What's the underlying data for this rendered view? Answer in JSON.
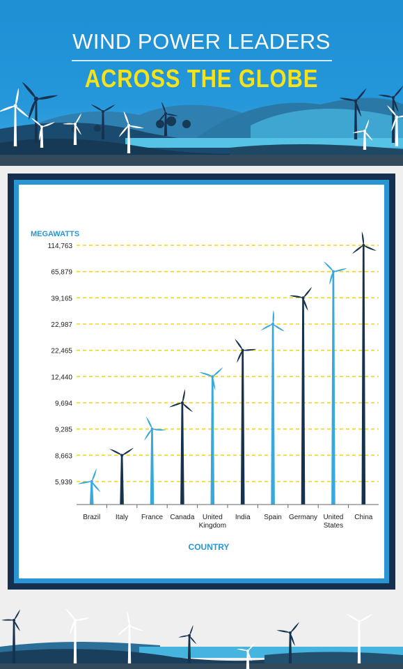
{
  "header": {
    "title_line1": "WIND POWER LEADERS",
    "title_line2": "ACROSS THE GLOBE"
  },
  "colors": {
    "sky": "#2496da",
    "title_yellow": "#f5e21b",
    "turbine_light": "#39a9dc",
    "turbine_dark": "#16324f",
    "gridline": "#f2d41a",
    "axis_text": "#1b1b1b",
    "axis_title": "#2a95d2",
    "card_border": "#15304e"
  },
  "chart_data": {
    "type": "bar",
    "ylabel": "MEGAWATTS",
    "xlabel": "COUNTRY",
    "y_scale": "ordinal (evenly spaced tick labels, not linear)",
    "grid": "horizontal dashed lines at each tick",
    "categories": [
      "Brazil",
      "Italy",
      "France",
      "Canada",
      "United Kingdom",
      "India",
      "Spain",
      "Germany",
      "United States",
      "China"
    ],
    "category_labels": [
      [
        "Brazil"
      ],
      [
        "Italy"
      ],
      [
        "France"
      ],
      [
        "Canada"
      ],
      [
        "United",
        "Kingdom"
      ],
      [
        "India"
      ],
      [
        "Spain"
      ],
      [
        "Germany"
      ],
      [
        "United",
        "States"
      ],
      [
        "China"
      ]
    ],
    "values": [
      5939,
      8663,
      9285,
      9694,
      12440,
      22465,
      22987,
      39165,
      65879,
      114763
    ],
    "y_ticks": [
      "114,763",
      "65,879",
      "39,165",
      "22,987",
      "22,465",
      "12,440",
      "9,694",
      "9,285",
      "8,663",
      "5,939"
    ],
    "bar_style": "wind turbines",
    "bar_colors": [
      "light",
      "dark",
      "light",
      "dark",
      "light",
      "dark",
      "light",
      "dark",
      "light",
      "dark"
    ]
  }
}
